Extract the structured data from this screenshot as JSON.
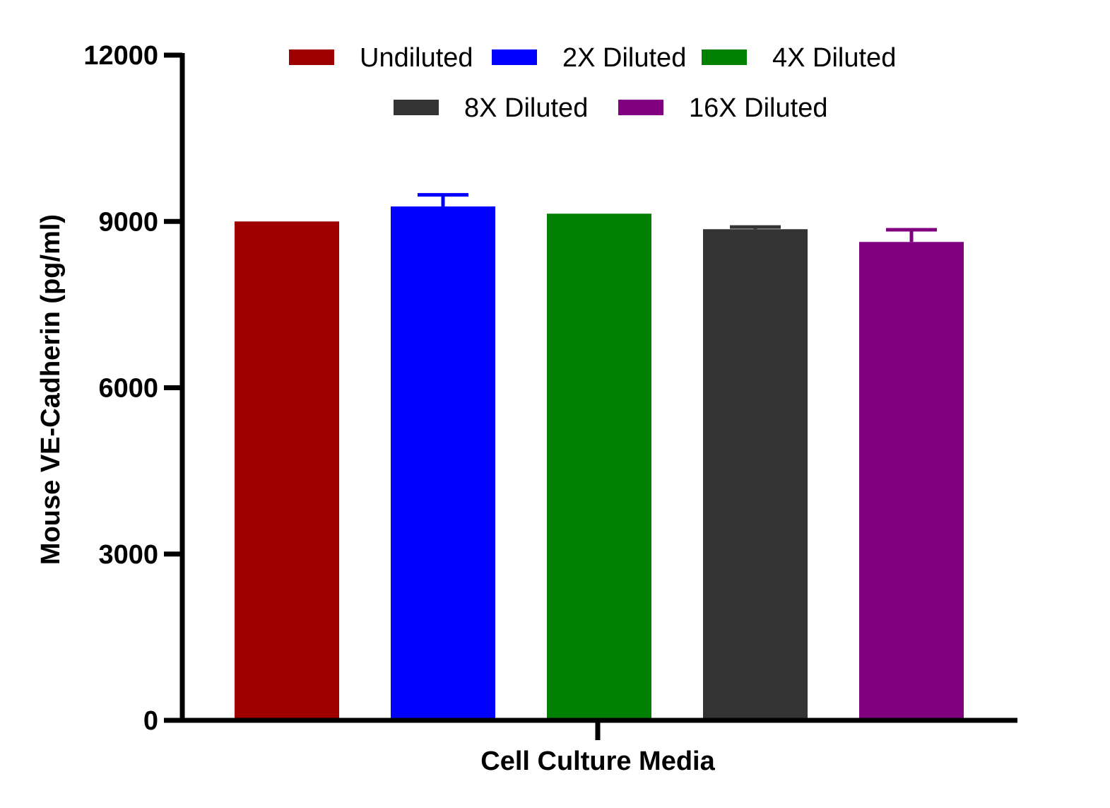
{
  "chart_data": {
    "type": "bar",
    "title": "",
    "xlabel": "Cell Culture Media",
    "ylabel": "Mouse VE-Cadherin (pg/ml)",
    "ylim": [
      0,
      12000
    ],
    "yticks": [
      0,
      3000,
      6000,
      9000,
      12000
    ],
    "ytick_labels": [
      "0",
      "3000",
      "6000",
      "9000",
      "12000"
    ],
    "grid": false,
    "legend_position": "top",
    "categories": [
      "Cell Culture Media"
    ],
    "series": [
      {
        "name": "Undiluted",
        "color": "#9e0000",
        "value": 9000,
        "error": 0
      },
      {
        "name": "2X Diluted",
        "color": "#0000ff",
        "value": 9270,
        "error": 210
      },
      {
        "name": "4X Diluted",
        "color": "#007f00",
        "value": 9140,
        "error": 0
      },
      {
        "name": "8X Diluted",
        "color": "#333333",
        "value": 8860,
        "error": 40
      },
      {
        "name": "16X Diluted",
        "color": "#800080",
        "value": 8630,
        "error": 220
      }
    ]
  }
}
